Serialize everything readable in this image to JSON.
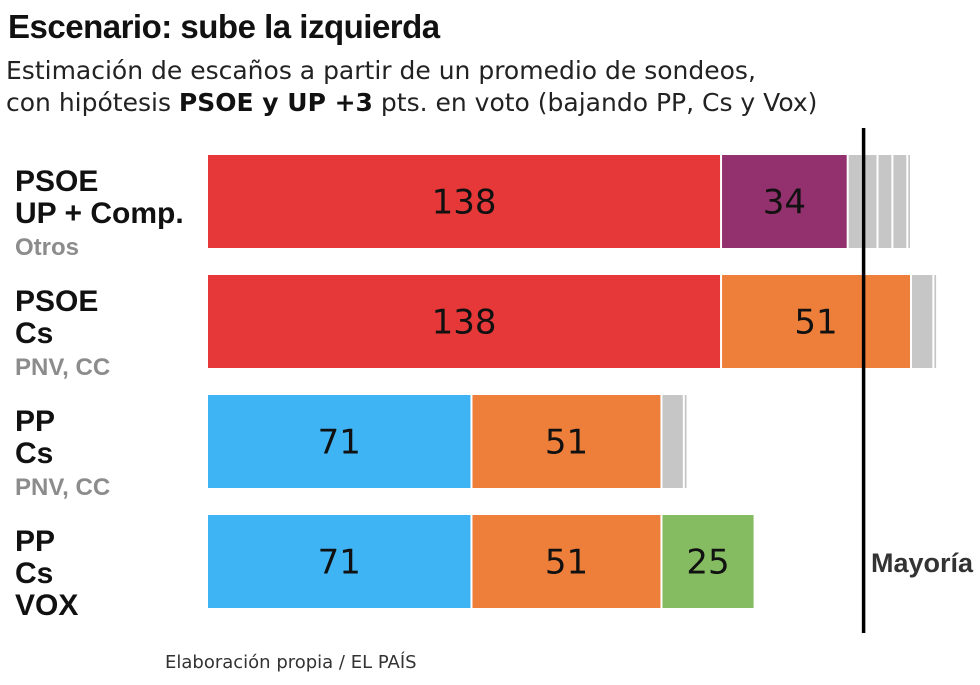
{
  "title": "Escenario: sube la izquierda",
  "subtitle": {
    "line1": "Estimación de escaños a partir de un promedio de sondeos,",
    "line2_prefix": "con hipótesis ",
    "line2_bold": "PSOE y UP +3",
    "line2_suffix": " pts. en voto (bajando PP, Cs y Vox)"
  },
  "source": "Elaboración propia / EL PAÍS",
  "colors": {
    "PSOE": "#e63838",
    "UP": "#93306e",
    "Cs": "#ee7f3a",
    "PP": "#3eb4f4",
    "VOX": "#85bc62",
    "Otros": "#c6c6c6"
  },
  "chart_data": {
    "type": "bar",
    "orientation": "horizontal-stacked",
    "title": "Escenario: sube la izquierda",
    "xlim": [
      0,
      189
    ],
    "majority": {
      "value": 176,
      "label": "Mayoría"
    },
    "rows": [
      {
        "labels": [
          "PSOE",
          "UP + Comp.",
          "Otros"
        ],
        "label_styles": [
          "main",
          "main",
          "minor"
        ],
        "segments": [
          {
            "party": "PSOE",
            "value": 138,
            "label": "138"
          },
          {
            "party": "UP",
            "value": 34,
            "label": "34"
          },
          {
            "party": "Otros",
            "value": 4,
            "label": ""
          },
          {
            "party": "Otros",
            "value": 4,
            "label": ""
          },
          {
            "party": "Otros",
            "value": 4,
            "label": ""
          },
          {
            "party": "Otros",
            "value": 4,
            "label": ""
          },
          {
            "party": "Otros",
            "value": 1,
            "label": ""
          }
        ]
      },
      {
        "labels": [
          "PSOE",
          "Cs",
          "PNV, CC"
        ],
        "label_styles": [
          "main",
          "main",
          "minor"
        ],
        "segments": [
          {
            "party": "PSOE",
            "value": 138,
            "label": "138"
          },
          {
            "party": "Cs",
            "value": 51,
            "label": "51"
          },
          {
            "party": "Otros",
            "value": 6,
            "label": ""
          },
          {
            "party": "Otros",
            "value": 1,
            "label": ""
          }
        ]
      },
      {
        "labels": [
          "PP",
          "Cs",
          "PNV, CC"
        ],
        "label_styles": [
          "main",
          "main",
          "minor"
        ],
        "segments": [
          {
            "party": "PP",
            "value": 71,
            "label": "71"
          },
          {
            "party": "Cs",
            "value": 51,
            "label": "51"
          },
          {
            "party": "Otros",
            "value": 6,
            "label": ""
          },
          {
            "party": "Otros",
            "value": 1,
            "label": ""
          }
        ]
      },
      {
        "labels": [
          "PP",
          "Cs",
          "VOX"
        ],
        "label_styles": [
          "main",
          "main",
          "main"
        ],
        "segments": [
          {
            "party": "PP",
            "value": 71,
            "label": "71"
          },
          {
            "party": "Cs",
            "value": 51,
            "label": "51"
          },
          {
            "party": "VOX",
            "value": 25,
            "label": "25"
          }
        ]
      }
    ]
  }
}
